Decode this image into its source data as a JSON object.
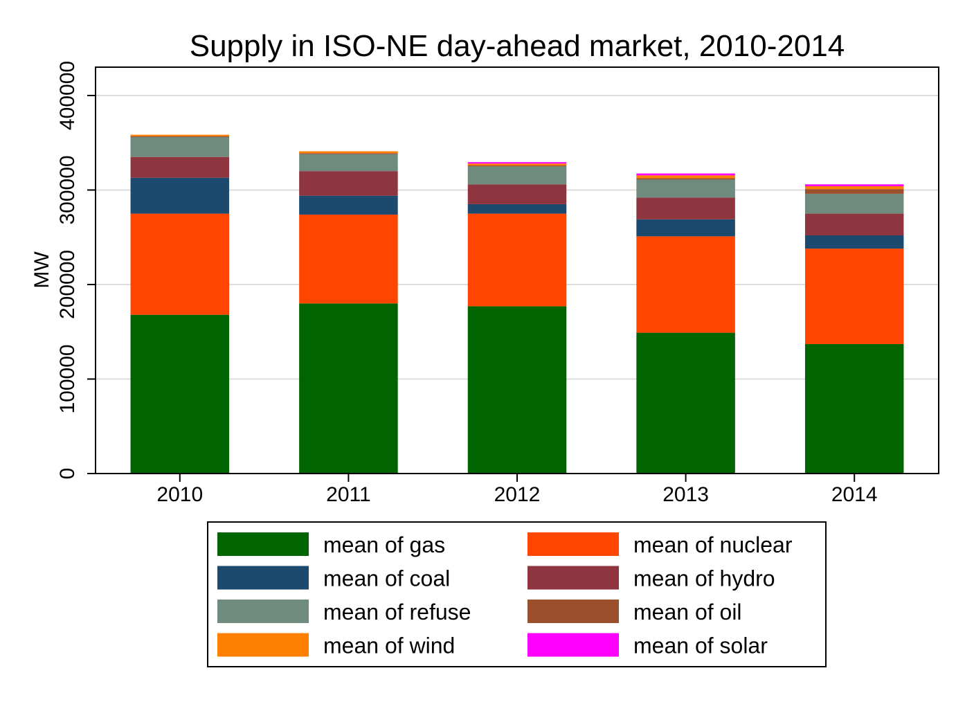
{
  "chart_data": {
    "type": "bar",
    "stacked": true,
    "title": "Supply in ISO-NE day-ahead market, 2010-2014",
    "xlabel": "",
    "ylabel": "MW",
    "ylim": [
      0,
      430000
    ],
    "yticks": [
      0,
      100000,
      200000,
      300000,
      400000
    ],
    "ytick_labels": [
      "0",
      "100000",
      "200000",
      "300000",
      "400000"
    ],
    "grid": true,
    "legend_position": "bottom",
    "categories": [
      "2010",
      "2011",
      "2012",
      "2013",
      "2014"
    ],
    "series": [
      {
        "name": "mean of gas",
        "color": "#006400",
        "values": [
          168000,
          180000,
          177000,
          149000,
          137000
        ]
      },
      {
        "name": "mean of nuclear",
        "color": "#FF4500",
        "values": [
          107000,
          94000,
          98000,
          102000,
          101000
        ]
      },
      {
        "name": "mean of coal",
        "color": "#1B4A6E",
        "values": [
          38000,
          20000,
          10000,
          18000,
          14000
        ]
      },
      {
        "name": "mean of hydro",
        "color": "#8E3540",
        "values": [
          22000,
          26000,
          21000,
          23000,
          23000
        ]
      },
      {
        "name": "mean of refuse",
        "color": "#6E8B7E",
        "values": [
          21000,
          18000,
          19000,
          19000,
          21000
        ]
      },
      {
        "name": "mean of oil",
        "color": "#9C4F2D",
        "values": [
          1000,
          1000,
          1000,
          1500,
          5000
        ]
      },
      {
        "name": "mean of wind",
        "color": "#FF7F00",
        "values": [
          1500,
          2000,
          2000,
          3000,
          3000
        ]
      },
      {
        "name": "mean of solar",
        "color": "#FF00FF",
        "values": [
          0,
          0,
          1500,
          2000,
          2000
        ]
      }
    ],
    "legend_order": [
      0,
      1,
      2,
      3,
      4,
      5,
      6,
      7
    ]
  }
}
